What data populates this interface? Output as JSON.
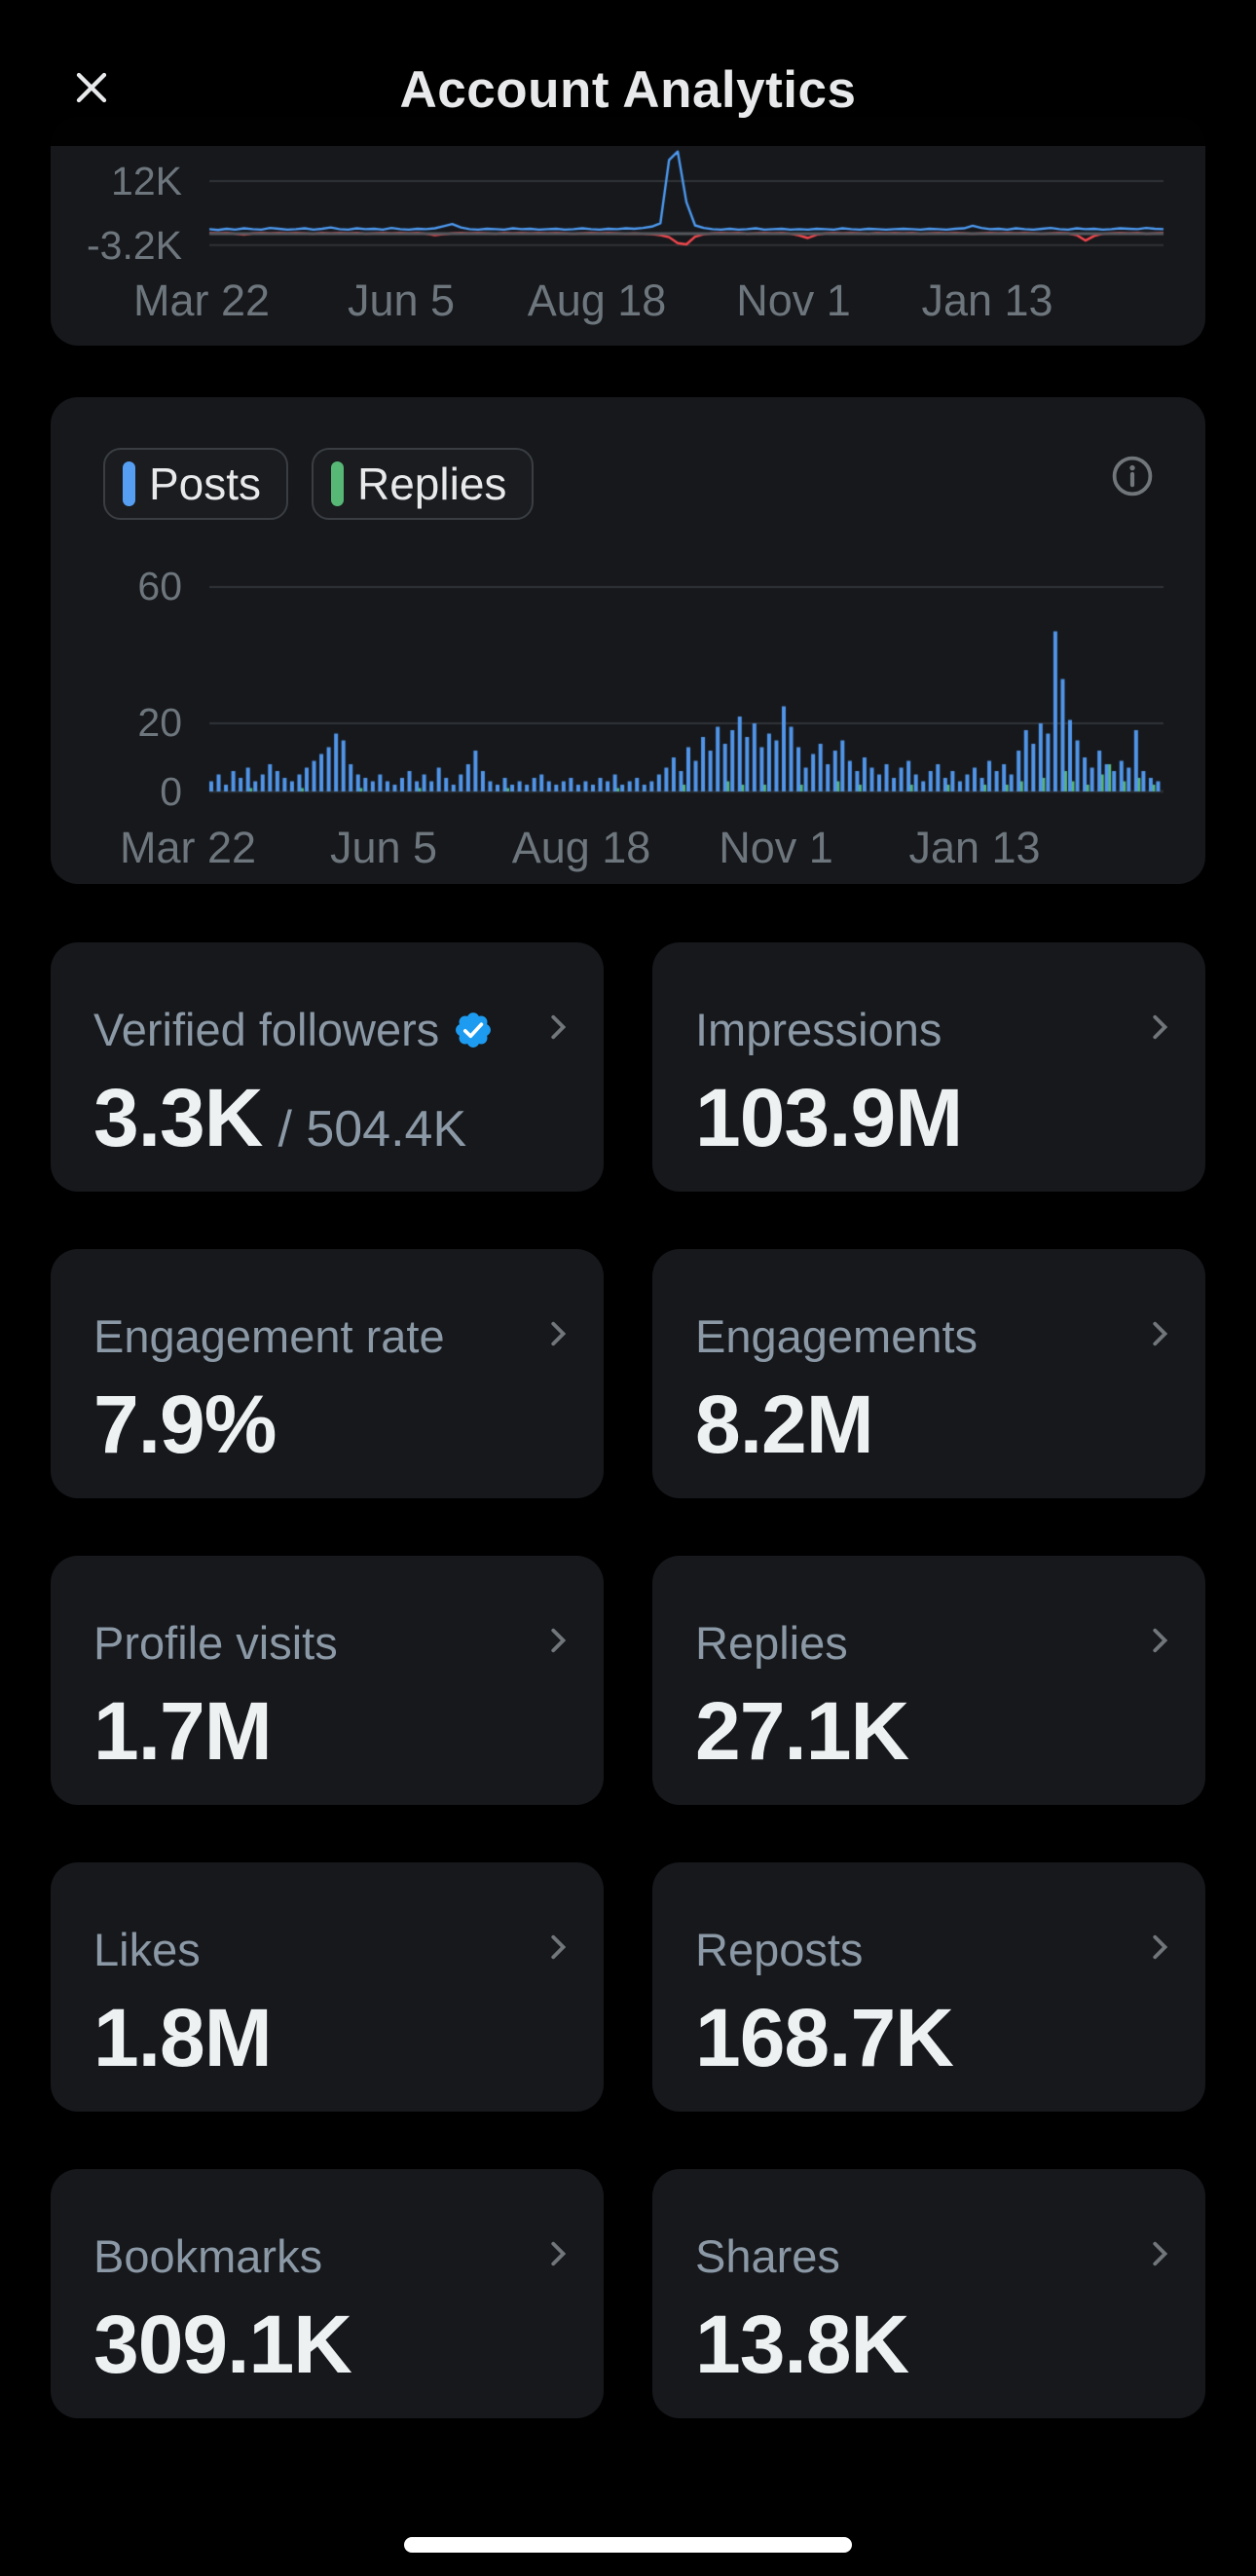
{
  "header": {
    "title": "Account Analytics"
  },
  "colors": {
    "background": "#000000",
    "card": "#16181c",
    "accent_blue": "#559ef2",
    "accent_green": "#57b876",
    "accent_red": "#f4484e",
    "badge_blue": "#1d9bf0",
    "label_gray": "#8b98a5",
    "axis_gray": "#6e767d",
    "value_white": "#edf1f2"
  },
  "chart_data": [
    {
      "type": "line",
      "title": "",
      "xlabel": "",
      "ylabel": "",
      "yticks": [
        {
          "label": "12K",
          "value": 12
        },
        {
          "label": "-3.2K",
          "value": -3.2
        }
      ],
      "xticks": [
        "Mar 22",
        "Jun 5",
        "Aug 18",
        "Nov 1",
        "Jan 13"
      ],
      "ylim": [
        -5,
        27
      ],
      "unit": "K",
      "grid": true,
      "series": [
        {
          "name": "series-blue",
          "color": "#4e9af0",
          "values": [
            0.6,
            0.4,
            0.7,
            0.5,
            0.8,
            0.6,
            0.5,
            0.9,
            0.7,
            0.5,
            0.6,
            0.8,
            0.5,
            0.7,
            1.0,
            0.6,
            0.5,
            0.8,
            0.6,
            0.7,
            0.5,
            0.9,
            0.6,
            0.5,
            0.7,
            0.6,
            0.8,
            1.3,
            1.8,
            1.0,
            0.6,
            0.5,
            0.7,
            0.6,
            0.5,
            0.8,
            0.6,
            0.7,
            0.5,
            0.6,
            0.7,
            0.5,
            0.6,
            0.8,
            0.6,
            0.5,
            0.7,
            0.6,
            0.8,
            0.7,
            0.9,
            1.2,
            2.0,
            17.0,
            19.0,
            7.0,
            1.5,
            0.9,
            0.6,
            0.5,
            0.7,
            0.5,
            0.6,
            0.8,
            0.5,
            0.6,
            0.7,
            0.5,
            0.6,
            0.5,
            0.7,
            0.6,
            0.5,
            0.8,
            0.6,
            0.5,
            0.7,
            0.6,
            0.5,
            0.6,
            0.7,
            0.6,
            0.5,
            0.7,
            0.6,
            0.5,
            0.7,
            0.8,
            1.4,
            0.9,
            0.6,
            0.7,
            0.5,
            0.8,
            0.6,
            0.5,
            0.7,
            0.9,
            0.6,
            0.5,
            0.8,
            0.6,
            0.7,
            0.5,
            0.6,
            0.8,
            0.7,
            0.6,
            0.9,
            0.7,
            0.6
          ]
        },
        {
          "name": "series-red",
          "color": "#f4484e",
          "values": [
            -0.3,
            -0.4,
            -0.3,
            -0.5,
            -0.7,
            -0.4,
            -0.3,
            -0.4,
            -0.3,
            -0.4,
            -0.3,
            -0.4,
            -0.5,
            -0.3,
            -0.4,
            -0.3,
            -0.4,
            -0.3,
            -0.5,
            -0.4,
            -0.3,
            -0.4,
            -0.3,
            -0.4,
            -0.3,
            -0.5,
            -0.8,
            -0.6,
            -0.4,
            -0.3,
            -0.4,
            -0.3,
            -0.4,
            -0.5,
            -0.3,
            -0.4,
            -0.3,
            -0.4,
            -0.3,
            -0.4,
            -0.3,
            -0.4,
            -0.5,
            -0.4,
            -0.3,
            -0.4,
            -0.3,
            -0.4,
            -0.5,
            -0.4,
            -0.5,
            -0.6,
            -0.8,
            -1.3,
            -2.7,
            -3.0,
            -1.2,
            -0.6,
            -0.4,
            -0.3,
            -0.4,
            -0.3,
            -0.5,
            -0.4,
            -0.3,
            -0.4,
            -0.3,
            -0.5,
            -0.9,
            -1.5,
            -0.7,
            -0.4,
            -0.3,
            -0.4,
            -0.3,
            -0.4,
            -0.5,
            -0.3,
            -0.4,
            -0.3,
            -0.4,
            -0.3,
            -0.5,
            -0.4,
            -0.3,
            -0.4,
            -0.3,
            -0.4,
            -0.5,
            -0.4,
            -0.3,
            -0.4,
            -0.3,
            -0.4,
            -0.3,
            -0.4,
            -0.5,
            -0.4,
            -0.3,
            -0.4,
            -0.8,
            -2.1,
            -1.0,
            -0.5,
            -0.4,
            -0.3,
            -0.4,
            -0.3,
            -0.5,
            -0.4,
            -0.3
          ]
        }
      ]
    },
    {
      "type": "bar",
      "title": "",
      "xlabel": "",
      "ylabel": "",
      "legend": [
        {
          "label": "Posts",
          "color": "#559ef2"
        },
        {
          "label": "Replies",
          "color": "#57b876"
        }
      ],
      "yticks": [
        {
          "label": "60",
          "value": 60
        },
        {
          "label": "20",
          "value": 20
        },
        {
          "label": "0",
          "value": 0
        }
      ],
      "xticks": [
        "Mar 22",
        "Jun 5",
        "Aug 18",
        "Nov 1",
        "Jan 13"
      ],
      "ylim": [
        0,
        60
      ],
      "grid": true,
      "series": [
        {
          "name": "Posts",
          "color": "#5195e8",
          "values": [
            3,
            5,
            2,
            6,
            4,
            7,
            3,
            5,
            8,
            6,
            4,
            3,
            5,
            7,
            9,
            11,
            13,
            17,
            15,
            8,
            5,
            4,
            3,
            5,
            3,
            2,
            4,
            6,
            3,
            5,
            3,
            7,
            4,
            2,
            5,
            8,
            12,
            6,
            3,
            2,
            4,
            2,
            3,
            2,
            4,
            5,
            3,
            2,
            3,
            4,
            2,
            3,
            2,
            4,
            3,
            5,
            2,
            3,
            4,
            2,
            3,
            5,
            7,
            10,
            6,
            13,
            9,
            16,
            12,
            19,
            14,
            18,
            22,
            16,
            20,
            13,
            17,
            15,
            25,
            19,
            13,
            7,
            11,
            14,
            8,
            12,
            15,
            9,
            6,
            10,
            7,
            5,
            8,
            4,
            7,
            9,
            5,
            3,
            6,
            8,
            4,
            6,
            3,
            5,
            7,
            4,
            9,
            6,
            8,
            5,
            12,
            18,
            14,
            20,
            17,
            47,
            33,
            21,
            15,
            10,
            7,
            12,
            8,
            6,
            9,
            7,
            18,
            6,
            4,
            3
          ]
        },
        {
          "name": "Replies",
          "color": "#57b876",
          "values": [
            0,
            0,
            0,
            0,
            0,
            1,
            0,
            0,
            0,
            0,
            0,
            0,
            1,
            0,
            0,
            0,
            0,
            0,
            0,
            0,
            1,
            0,
            0,
            0,
            0,
            0,
            0,
            0,
            1,
            0,
            0,
            0,
            0,
            0,
            0,
            0,
            0,
            0,
            0,
            0,
            1,
            0,
            0,
            0,
            0,
            0,
            0,
            0,
            0,
            0,
            0,
            0,
            0,
            0,
            0,
            1,
            0,
            0,
            0,
            0,
            0,
            0,
            0,
            0,
            2,
            0,
            0,
            0,
            0,
            0,
            3,
            0,
            2,
            0,
            0,
            2,
            0,
            0,
            0,
            0,
            2,
            0,
            0,
            0,
            0,
            3,
            0,
            0,
            2,
            0,
            0,
            0,
            0,
            0,
            0,
            2,
            0,
            0,
            0,
            0,
            2,
            0,
            0,
            0,
            0,
            2,
            0,
            0,
            2,
            0,
            3,
            0,
            0,
            4,
            0,
            0,
            6,
            3,
            0,
            2,
            0,
            5,
            8,
            0,
            3,
            0,
            4,
            0,
            2,
            0
          ]
        }
      ]
    }
  ],
  "metric_cards": [
    {
      "label": "Verified followers",
      "value": "3.3K",
      "secondary": "/ 504.4K"
    },
    {
      "label": "Impressions",
      "value": "103.9M"
    },
    {
      "label": "Engagement rate",
      "value": "7.9%"
    },
    {
      "label": "Engagements",
      "value": "8.2M"
    },
    {
      "label": "Profile visits",
      "value": "1.7M"
    },
    {
      "label": "Replies",
      "value": "27.1K"
    },
    {
      "label": "Likes",
      "value": "1.8M"
    },
    {
      "label": "Reposts",
      "value": "168.7K"
    },
    {
      "label": "Bookmarks",
      "value": "309.1K"
    },
    {
      "label": "Shares",
      "value": "13.8K"
    }
  ]
}
